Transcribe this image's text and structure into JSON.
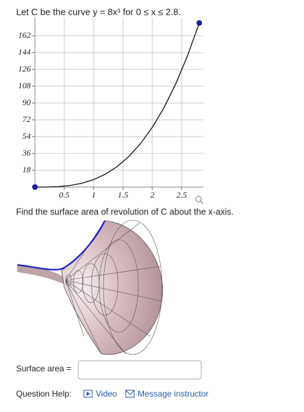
{
  "question": {
    "prompt": "Let C be the curve y = 8x³ for 0 ≤ x ≤ 2.8.",
    "task": "Find the surface area of revolution of C about the x-axis.",
    "answer_label": "Surface area =",
    "help_label": "Question Help:",
    "video": "Video",
    "message": "Message instructor"
  },
  "chart_data": {
    "type": "line",
    "x": [
      0,
      0.2,
      0.4,
      0.6,
      0.8,
      1.0,
      1.2,
      1.4,
      1.6,
      1.8,
      2.0,
      2.2,
      2.4,
      2.6,
      2.8
    ],
    "series": [
      {
        "color": "#000000",
        "marker_color": "#1a1aa6",
        "values": [
          0,
          0.064,
          0.512,
          1.728,
          4.096,
          8,
          13.824,
          21.952,
          32.768,
          46.656,
          64,
          85.184,
          110.592,
          140.608,
          175.616
        ]
      }
    ],
    "xlim": [
      0,
      2.87
    ],
    "ylim": [
      0,
      181.5
    ],
    "xticks": [
      0.5,
      1,
      1.5,
      2,
      2.5
    ],
    "yticks": [
      18,
      36,
      54,
      72,
      90,
      108,
      126,
      144,
      162
    ],
    "grid": true
  }
}
